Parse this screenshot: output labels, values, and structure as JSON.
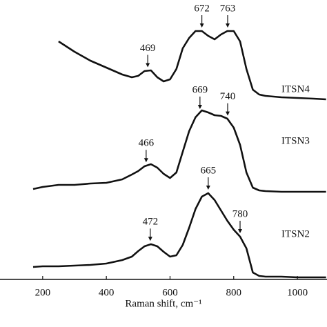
{
  "chart_data": {
    "type": "line",
    "x_label": "Raman shift, cm⁻¹",
    "x": [
      170,
      200,
      250,
      300,
      350,
      400,
      450,
      480,
      500,
      520,
      540,
      560,
      580,
      600,
      620,
      640,
      660,
      680,
      700,
      720,
      740,
      760,
      780,
      800,
      820,
      840,
      860,
      880,
      900,
      950,
      1000,
      1050,
      1090
    ],
    "series": [
      {
        "name": "ITSN2",
        "color": "#111111",
        "values": [
          3.75,
          4,
          4,
          4.25,
          4.5,
          5,
          6.25,
          7.5,
          9.5,
          11.25,
          12,
          11.25,
          9.25,
          7.5,
          8,
          11.75,
          18,
          24.75,
          29.25,
          30.5,
          28,
          24.25,
          20.5,
          17.25,
          14.75,
          10.5,
          1.75,
          0.5,
          0.25,
          0.25,
          0,
          0,
          0
        ],
        "annotations": [
          {
            "text": "472",
            "x": 538
          },
          {
            "text": "665",
            "x": 720
          },
          {
            "text": "780",
            "x": 820
          }
        ]
      },
      {
        "name": "ITSN3",
        "color": "#111111",
        "values": [
          32,
          32.75,
          33.5,
          33.5,
          34,
          34.25,
          35.5,
          37.25,
          38.5,
          40.25,
          41,
          39.75,
          37.5,
          36,
          38,
          45.5,
          53,
          58,
          60.5,
          59.75,
          58.75,
          58.5,
          57.5,
          54.25,
          48,
          38,
          32.5,
          31.5,
          31.25,
          31,
          31,
          31,
          31
        ],
        "annotations": [
          {
            "text": "466",
            "x": 525
          },
          {
            "text": "669",
            "x": 694
          },
          {
            "text": "740",
            "x": 781
          }
        ]
      },
      {
        "name": "ITSN4",
        "color": "#111111",
        "values": [
          null,
          null,
          85.5,
          81.75,
          78.5,
          76,
          73.5,
          72.5,
          73,
          74.75,
          75,
          72.5,
          71,
          71.75,
          75.5,
          83,
          86.75,
          89.25,
          89.25,
          87.5,
          86.25,
          88,
          89.25,
          89.25,
          85.5,
          75.5,
          68,
          66.25,
          65.75,
          65.25,
          65,
          64.75,
          64.5
        ],
        "annotations": [
          {
            "text": "469",
            "x": 530
          },
          {
            "text": "672",
            "x": 700
          },
          {
            "text": "763",
            "x": 781
          }
        ]
      }
    ],
    "xlim": [
      66,
      1093
    ],
    "ylim": [
      0,
      100.5
    ],
    "xticks": [
      200,
      400,
      600,
      800,
      1000
    ]
  }
}
